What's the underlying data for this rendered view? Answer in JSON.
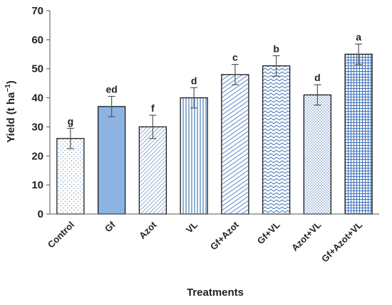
{
  "chart_data": {
    "type": "bar",
    "title": "",
    "xlabel": "Treatments",
    "ylabel_main": "Yield (t ha",
    "ylabel_sup": "−1",
    "ylabel_close": ")",
    "ylim": [
      0,
      70
    ],
    "yticks": [
      0,
      10,
      20,
      30,
      40,
      50,
      60,
      70
    ],
    "ytick_labels": [
      "0",
      "10",
      "20",
      "30",
      "40",
      "50",
      "60",
      "70"
    ],
    "grid": false,
    "categories": [
      "Control",
      "Gf",
      "Azot",
      "VL",
      "Gf+Azot",
      "Gf+VL",
      "Azot+VL",
      "Gf+Azot+VL"
    ],
    "values": [
      26,
      37,
      30,
      40,
      48,
      51,
      41,
      55
    ],
    "errors": [
      3.5,
      3.5,
      4,
      3.5,
      3.5,
      3.5,
      3.5,
      3.5
    ],
    "significance_letters": [
      "g",
      "ed",
      "f",
      "d",
      "c",
      "b",
      "d",
      "a"
    ],
    "bar_styles": [
      "dots-sparse",
      "solid",
      "diag-lines",
      "vert-lines",
      "diag-dense",
      "zigzag",
      "dots-dense",
      "grid"
    ],
    "colors": {
      "bar_solid": "#8db3e2",
      "pattern": "#3b6fb6",
      "outline": "#1a1a1a",
      "error_bar": "#555555"
    }
  }
}
